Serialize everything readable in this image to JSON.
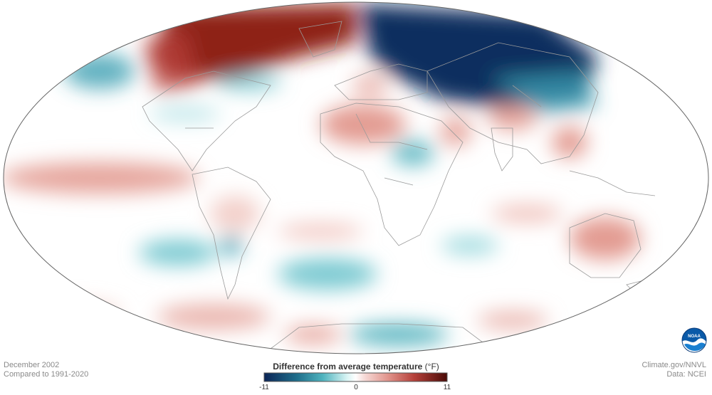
{
  "map": {
    "projection": "Mollweide",
    "ocean_color": "#ffffff",
    "border_color": "#9a9a9a",
    "outline_color": "#666666"
  },
  "footer": {
    "date": "December 2002",
    "baseline": "Compared to 1991-2020",
    "credit": "Climate.gov/NNVL",
    "data_source": "Data: NCEI"
  },
  "legend": {
    "title": "Difference from average temperature",
    "unit": "(°F)",
    "min_label": "-11",
    "mid_label": "0",
    "max_label": "11",
    "scale_min": -11,
    "scale_max": 11,
    "colors": [
      "#0c2557",
      "#1f6f8b",
      "#4fb3be",
      "#d6f3f3",
      "#ffffff",
      "#f6d9d6",
      "#e0928a",
      "#b5403a",
      "#4a0a06"
    ]
  },
  "logo": {
    "text": "NOAA",
    "icon": "noaa-logo-icon"
  }
}
